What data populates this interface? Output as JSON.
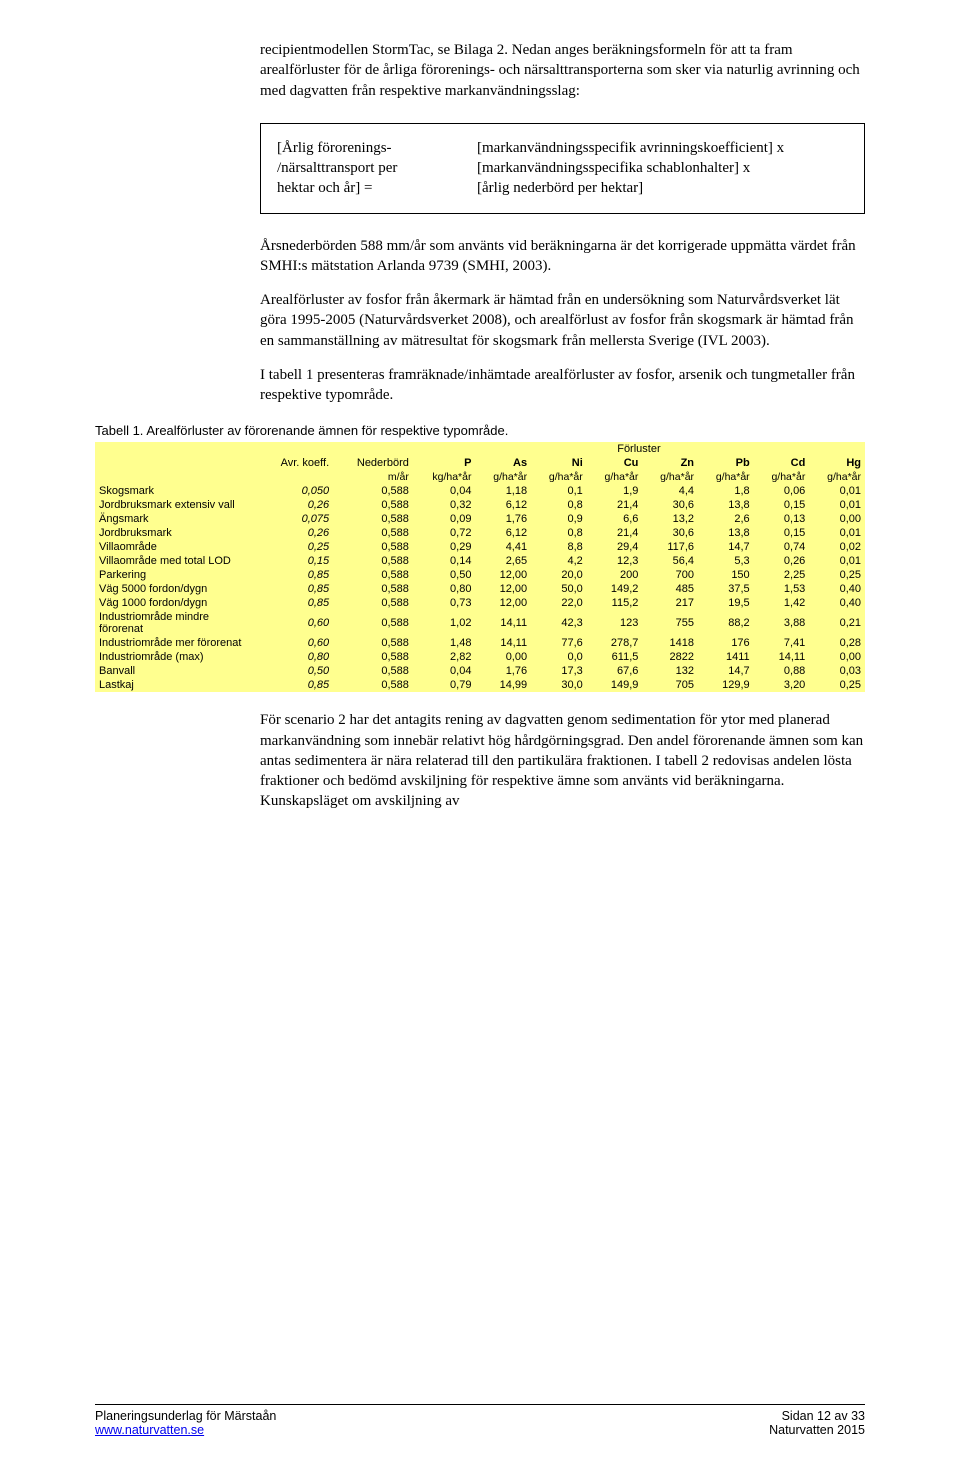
{
  "para1": "recipientmodellen StormTac, se Bilaga 2. Nedan anges beräkningsformeln för att ta fram arealförluster för de årliga förorenings- och närsalttransporterna som sker via naturlig avrinning och med dagvatten från respektive markanvändningsslag:",
  "formula": {
    "left_l1": "[Årlig förorenings-",
    "left_l2": "/närsalttransport per",
    "left_l3": "hektar och år] =",
    "right_l1": "[markanvändningsspecifik avrinningskoefficient] x",
    "right_l2": "[markanvändningsspecifika schablonhalter] x",
    "right_l3": "[årlig nederbörd per hektar]"
  },
  "para2": "Årsnederbörden 588 mm/år som använts vid beräkningarna är det korrigerade uppmätta värdet från SMHI:s mätstation Arlanda 9739 (SMHI, 2003).",
  "para3": "Arealförluster av fosfor från åkermark är hämtad från en undersökning som Naturvårdsverket lät göra 1995-2005 (Naturvårdsverket 2008), och arealförlust av fosfor från skogsmark är hämtad från en sammanställning av mätresultat för skogsmark från mellersta Sverige (IVL 2003).",
  "para4": "I tabell 1 presenteras framräknade/inhämtade arealförluster av fosfor, arsenik och tungmetaller från respektive typområde.",
  "caption1": "Tabell 1. Arealförluster av förorenande ämnen för respektive typområde.",
  "table": {
    "bg": "#ffff8f",
    "forluster": "Förluster",
    "h_avr": "Avr. koeff.",
    "h_ned": "Nederbörd",
    "cols": [
      "P",
      "As",
      "Ni",
      "Cu",
      "Zn",
      "Pb",
      "Cd",
      "Hg"
    ],
    "unit_ned": "m/år",
    "unit_first": "kg/ha*år",
    "unit_rest": "g/ha*år",
    "rows": [
      {
        "label": "Skogsmark",
        "avr": "0,050",
        "ned": "0,588",
        "v": [
          "0,04",
          "1,18",
          "0,1",
          "1,9",
          "4,4",
          "1,8",
          "0,06",
          "0,01"
        ]
      },
      {
        "label": "Jordbruksmark extensiv vall",
        "avr": "0,26",
        "ned": "0,588",
        "v": [
          "0,32",
          "6,12",
          "0,8",
          "21,4",
          "30,6",
          "13,8",
          "0,15",
          "0,01"
        ]
      },
      {
        "label": "Ängsmark",
        "avr": "0,075",
        "ned": "0,588",
        "v": [
          "0,09",
          "1,76",
          "0,9",
          "6,6",
          "13,2",
          "2,6",
          "0,13",
          "0,00"
        ]
      },
      {
        "label": "Jordbruksmark",
        "avr": "0,26",
        "ned": "0,588",
        "v": [
          "0,72",
          "6,12",
          "0,8",
          "21,4",
          "30,6",
          "13,8",
          "0,15",
          "0,01"
        ]
      },
      {
        "label": "Villaområde",
        "avr": "0,25",
        "ned": "0,588",
        "v": [
          "0,29",
          "4,41",
          "8,8",
          "29,4",
          "117,6",
          "14,7",
          "0,74",
          "0,02"
        ]
      },
      {
        "label": "Villaområde med total LOD",
        "avr": "0,15",
        "ned": "0,588",
        "v": [
          "0,14",
          "2,65",
          "4,2",
          "12,3",
          "56,4",
          "5,3",
          "0,26",
          "0,01"
        ]
      },
      {
        "label": "Parkering",
        "avr": "0,85",
        "ned": "0,588",
        "v": [
          "0,50",
          "12,00",
          "20,0",
          "200",
          "700",
          "150",
          "2,25",
          "0,25"
        ]
      },
      {
        "label": "Väg 5000 fordon/dygn",
        "avr": "0,85",
        "ned": "0,588",
        "v": [
          "0,80",
          "12,00",
          "50,0",
          "149,2",
          "485",
          "37,5",
          "1,53",
          "0,40"
        ]
      },
      {
        "label": "Väg 1000 fordon/dygn",
        "avr": "0,85",
        "ned": "0,588",
        "v": [
          "0,73",
          "12,00",
          "22,0",
          "115,2",
          "217",
          "19,5",
          "1,42",
          "0,40"
        ]
      },
      {
        "label": "Industriområde mindre förorenat",
        "avr": "0,60",
        "ned": "0,588",
        "v": [
          "1,02",
          "14,11",
          "42,3",
          "123",
          "755",
          "88,2",
          "3,88",
          "0,21"
        ]
      },
      {
        "label": "Industriområde mer förorenat",
        "avr": "0,60",
        "ned": "0,588",
        "v": [
          "1,48",
          "14,11",
          "77,6",
          "278,7",
          "1418",
          "176",
          "7,41",
          "0,28"
        ]
      },
      {
        "label": "Industriområde (max)",
        "avr": "0,80",
        "ned": "0,588",
        "v": [
          "2,82",
          "0,00",
          "0,0",
          "611,5",
          "2822",
          "1411",
          "14,11",
          "0,00"
        ]
      },
      {
        "label": "Banvall",
        "avr": "0,50",
        "ned": "0,588",
        "v": [
          "0,04",
          "1,76",
          "17,3",
          "67,6",
          "132",
          "14,7",
          "0,88",
          "0,03"
        ]
      },
      {
        "label": "Lastkaj",
        "avr": "0,85",
        "ned": "0,588",
        "v": [
          "0,79",
          "14,99",
          "30,0",
          "149,9",
          "705",
          "129,9",
          "3,20",
          "0,25"
        ]
      }
    ]
  },
  "para5": "För scenario 2 har det antagits rening av dagvatten genom sedimentation för ytor med planerad markanvändning som innebär relativt hög hårdgörningsgrad. Den andel förorenande ämnen som kan antas sedimentera är nära relaterad till den partikulära fraktionen. I tabell 2 redovisas andelen lösta fraktioner och bedömd avskiljning för respektive ämne som använts vid beräkningarna. Kunskapsläget om avskiljning av",
  "footer": {
    "left1": "Planeringsunderlag för Märstaån",
    "left2": "www.naturvatten.se",
    "right1": "Sidan 12 av 33",
    "right2": "Naturvatten 2015"
  }
}
